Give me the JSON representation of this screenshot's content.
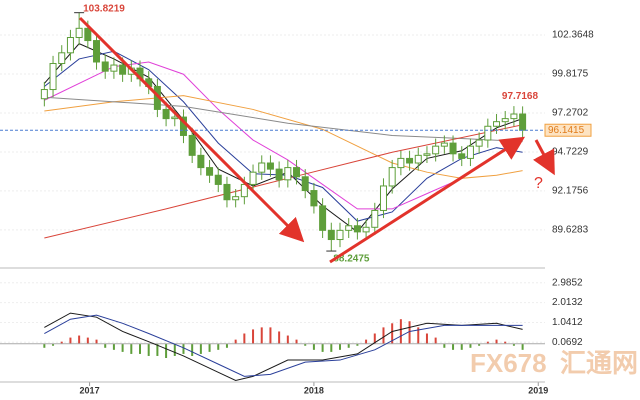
{
  "chart_data": {
    "type": "candlestick",
    "categories": [
      null,
      null,
      null,
      null,
      null,
      null,
      null,
      null,
      null,
      null,
      null,
      null,
      null,
      null,
      null,
      null,
      null,
      null,
      null,
      null,
      null,
      null,
      null,
      null,
      null,
      null,
      null,
      null,
      null,
      null,
      null,
      null,
      null,
      null,
      null,
      null,
      null,
      null,
      null,
      null,
      null,
      null,
      null,
      null,
      null,
      null,
      null,
      null,
      null,
      null,
      null,
      null,
      null,
      null,
      null,
      null
    ],
    "open": [
      98.2,
      98.8,
      100.5,
      101.2,
      102.2,
      102.8,
      102.0,
      100.6,
      100.0,
      100.4,
      99.8,
      100.2,
      99.5,
      99.0,
      97.5,
      96.9,
      97.0,
      95.8,
      94.5,
      93.7,
      93.2,
      92.6,
      91.6,
      91.8,
      92.6,
      93.4,
      94.0,
      93.6,
      92.9,
      93.7,
      93.1,
      92.2,
      91.2,
      89.6,
      89.0,
      89.6,
      89.9,
      89.5,
      89.8,
      90.9,
      92.5,
      93.7,
      94.3,
      94.0,
      94.5,
      94.6,
      95.1,
      95.3,
      94.6,
      94.3,
      95.1,
      95.5,
      96.4,
      96.7,
      96.9,
      97.2
    ],
    "high": [
      99.3,
      101.0,
      101.7,
      102.7,
      103.8219,
      103.3,
      102.5,
      101.1,
      100.9,
      100.9,
      100.7,
      100.7,
      100.0,
      99.5,
      98.0,
      97.5,
      97.5,
      96.3,
      95.0,
      94.2,
      93.7,
      93.1,
      92.3,
      93.1,
      93.9,
      94.5,
      94.5,
      94.1,
      94.2,
      94.2,
      93.6,
      92.7,
      91.7,
      90.1,
      90.1,
      90.4,
      90.4,
      90.3,
      91.4,
      93.0,
      94.2,
      94.8,
      94.8,
      95.0,
      95.1,
      95.6,
      95.8,
      95.8,
      95.1,
      95.6,
      96.0,
      96.9,
      97.2,
      97.4,
      97.7168,
      97.7
    ],
    "low": [
      97.7,
      98.3,
      100.0,
      100.7,
      101.7,
      101.5,
      100.1,
      99.5,
      99.5,
      99.3,
      99.3,
      99.0,
      98.5,
      97.0,
      96.4,
      96.4,
      95.3,
      94.0,
      93.2,
      92.7,
      92.1,
      91.1,
      91.1,
      91.3,
      92.1,
      92.9,
      93.1,
      92.4,
      92.4,
      92.6,
      91.7,
      90.7,
      89.1,
      88.2475,
      88.5,
      89.1,
      89.0,
      89.0,
      89.3,
      90.4,
      92.0,
      93.2,
      93.5,
      93.5,
      94.0,
      94.1,
      94.6,
      94.1,
      93.8,
      93.8,
      94.6,
      95.0,
      95.9,
      96.2,
      96.4,
      95.64
    ],
    "close": [
      98.8,
      100.5,
      101.2,
      102.2,
      102.8,
      102.0,
      100.6,
      100.0,
      100.4,
      99.8,
      100.2,
      99.5,
      99.0,
      97.5,
      96.9,
      97.0,
      95.8,
      94.5,
      93.7,
      93.2,
      92.6,
      91.6,
      91.8,
      92.6,
      93.4,
      94.0,
      93.6,
      92.9,
      93.7,
      93.1,
      92.2,
      91.2,
      89.6,
      89.0,
      89.6,
      89.9,
      89.5,
      89.8,
      90.9,
      92.5,
      93.7,
      94.3,
      94.0,
      94.5,
      94.6,
      95.1,
      95.3,
      94.6,
      94.3,
      95.1,
      95.5,
      96.4,
      96.7,
      96.9,
      97.2,
      96.1415
    ],
    "up_color": "#ffffff",
    "down_color": "#5e9e3a",
    "xlim": [
      -0.5,
      57
    ],
    "xticks": [
      {
        "value": 5.2,
        "label": "2017"
      },
      {
        "value": 31,
        "label": "2018"
      },
      {
        "value": 56.8,
        "label": "2019"
      }
    ],
    "ylim": [
      87.14,
      104.65
    ],
    "yticks": [
      102.3648,
      99.8175,
      97.2702,
      94.7229,
      92.1756,
      89.6283
    ],
    "grid": true,
    "ma": [
      {
        "color": "#1a1a1a",
        "x": [
          0,
          4,
          8,
          12,
          16,
          20,
          24,
          28,
          32,
          36,
          40,
          44,
          48,
          52,
          55
        ],
        "values": [
          99.2,
          101.8,
          100.8,
          99.6,
          96.8,
          93.6,
          92.5,
          93.4,
          91.2,
          89.5,
          92.3,
          94.3,
          94.8,
          96.3,
          96.9
        ]
      },
      {
        "color": "#2a3f9a",
        "x": [
          0,
          4,
          8,
          12,
          16,
          20,
          24,
          28,
          32,
          36,
          40,
          44,
          48,
          52,
          55
        ],
        "values": [
          99.0,
          100.8,
          101.3,
          100.1,
          98.0,
          95.3,
          93.3,
          93.2,
          92.4,
          90.2,
          90.8,
          93.0,
          94.3,
          95.0,
          94.7
        ]
      },
      {
        "color": "#e040d8",
        "x": [
          0,
          8,
          12,
          16,
          20,
          24,
          28,
          32,
          36,
          40,
          44,
          48,
          52,
          55
        ],
        "values": [
          98.1,
          100.3,
          100.6,
          99.8,
          97.5,
          95.5,
          94.2,
          92.6,
          91.0,
          91.0,
          92.0,
          93.0,
          94.5,
          95.5
        ]
      },
      {
        "color": "#f0a040",
        "x": [
          0,
          8,
          16,
          24,
          32,
          40,
          44,
          48,
          52,
          55
        ],
        "values": [
          97.4,
          98.0,
          98.4,
          97.5,
          96.2,
          94.0,
          93.4,
          93.0,
          93.2,
          93.5
        ]
      },
      {
        "color": "#8a8a8a",
        "x": [
          0,
          16,
          28,
          40,
          48,
          55
        ],
        "values": [
          98.3,
          97.7,
          96.6,
          95.8,
          95.6,
          95.4
        ]
      },
      {
        "color": "#d9453a",
        "x": [
          0,
          14,
          28,
          40,
          55
        ],
        "values": [
          89.1,
          91.0,
          93.0,
          94.7,
          96.5
        ]
      }
    ],
    "question": "?",
    "macd": {
      "ylim": [
        -1.875,
        3.61
      ],
      "yticks": [
        2.9852,
        2.0132,
        1.0412,
        0.0692
      ],
      "lines": [
        {
          "color": "#1a1a1a",
          "x": [
            0,
            3,
            6,
            9,
            12,
            16,
            20,
            22,
            24,
            28,
            32,
            36,
            40,
            44,
            48,
            52,
            55
          ],
          "values": [
            0.8,
            1.5,
            1.3,
            0.6,
            0.1,
            -0.6,
            -1.4,
            -1.8,
            -1.6,
            -0.8,
            -0.8,
            -0.5,
            0.6,
            1.0,
            0.9,
            1.0,
            0.7
          ]
        },
        {
          "color": "#2a3f9a",
          "x": [
            0,
            3,
            6,
            9,
            12,
            16,
            20,
            23,
            26,
            30,
            34,
            38,
            42,
            46,
            50,
            55
          ],
          "values": [
            0.5,
            1.2,
            1.4,
            1.0,
            0.5,
            -0.2,
            -1.0,
            -1.6,
            -1.5,
            -0.9,
            -0.8,
            -0.3,
            0.6,
            0.9,
            0.9,
            0.9
          ]
        }
      ],
      "histogram": {
        "up_color": "#d9453a",
        "down_color": "#5e9e3a",
        "values": [
          -0.2,
          -0.1,
          0.1,
          0.3,
          0.4,
          0.3,
          0.2,
          -0.2,
          -0.3,
          -0.4,
          -0.5,
          -0.5,
          -0.6,
          -0.6,
          -0.7,
          -0.6,
          -0.5,
          -0.6,
          -0.5,
          -0.4,
          -0.3,
          -0.2,
          0.2,
          0.5,
          0.7,
          0.8,
          0.8,
          0.6,
          0.4,
          0.2,
          -0.1,
          -0.3,
          -0.4,
          -0.4,
          -0.3,
          -0.2,
          -0.1,
          0.2,
          0.5,
          0.8,
          1.0,
          1.2,
          1.1,
          0.8,
          0.5,
          0.3,
          -0.2,
          -0.3,
          -0.3,
          -0.2,
          -0.1,
          0.1,
          0.2,
          0.1,
          -0.1,
          -0.3
        ]
      }
    },
    "watermark": [
      "FX678",
      "汇通网"
    ]
  }
}
